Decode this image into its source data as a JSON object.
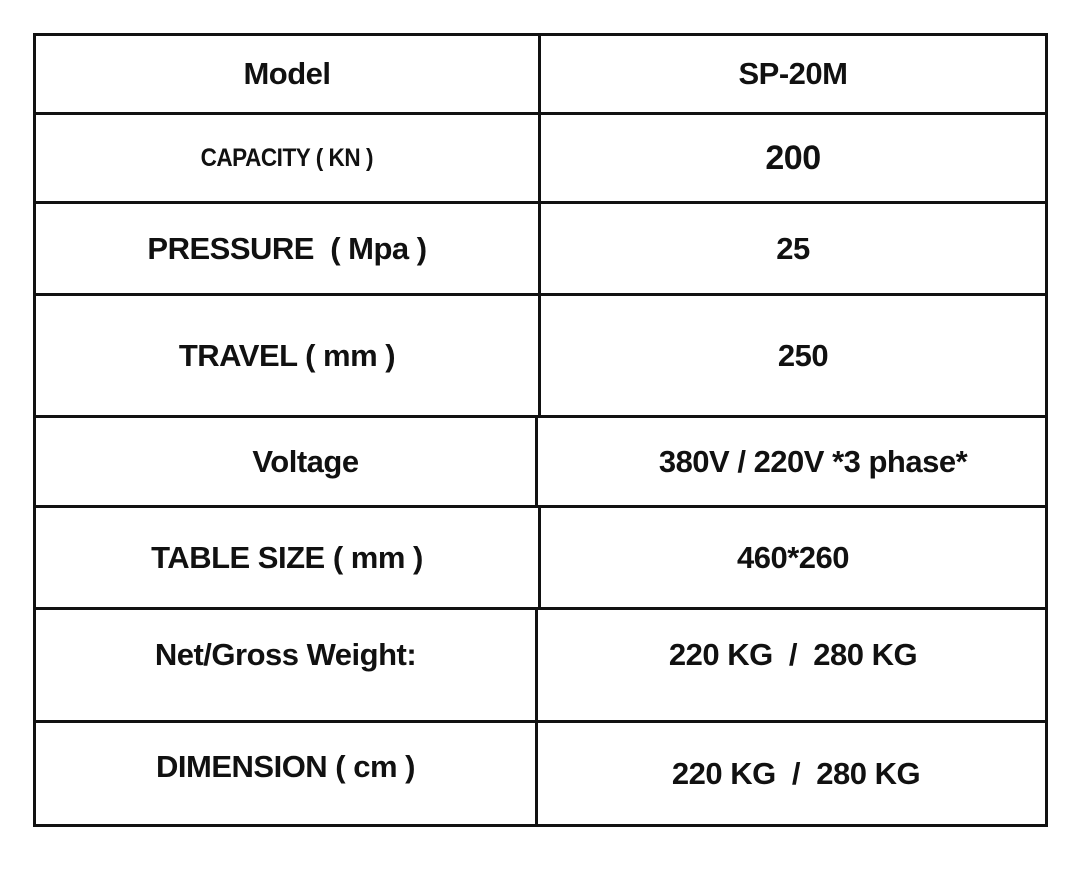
{
  "rows": [
    {
      "label": "Model",
      "value": "SP-20M"
    },
    {
      "label": "CAPACITY ( KN )",
      "value": "200"
    },
    {
      "label": "PRESSURE  ( Mpa )",
      "value": "25"
    },
    {
      "label": "TRAVEL ( mm )",
      "value": "250"
    },
    {
      "label": "Voltage",
      "value": "380V / 220V *3 phase*"
    },
    {
      "label": "TABLE SIZE ( mm )",
      "value": "460*260"
    },
    {
      "label": "Net/Gross Weight:",
      "value": "220 KG  /  280 KG"
    },
    {
      "label": "DIMENSION ( cm )",
      "value": "220 KG  /  280 KG"
    }
  ]
}
